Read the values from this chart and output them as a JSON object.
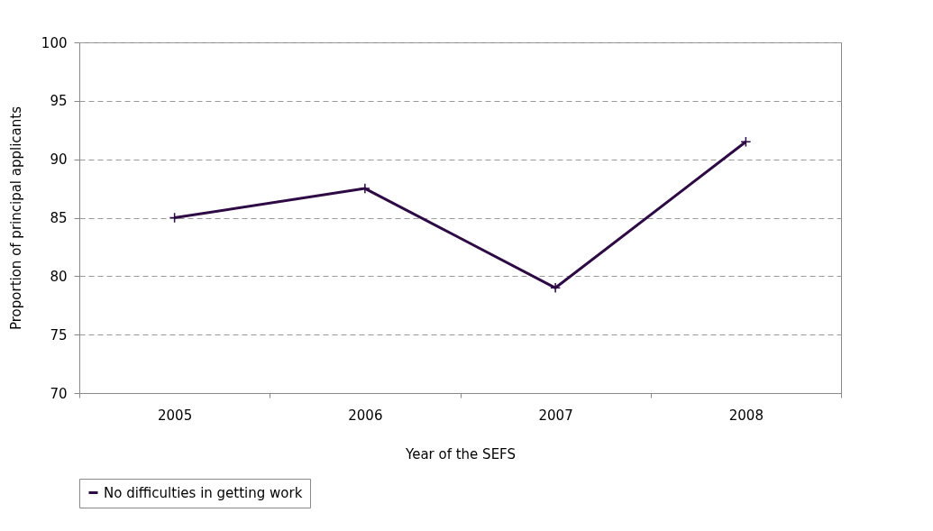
{
  "chart_data": {
    "type": "line",
    "xlabel": "Year of the SEFS",
    "ylabel": "Proportion  of  principal  applicants",
    "categories": [
      "2005",
      "2006",
      "2007",
      "2008"
    ],
    "series": [
      {
        "name": "No difficulties in getting work",
        "color": "#2e0a45",
        "values": [
          85,
          87.5,
          79,
          91.5
        ]
      }
    ],
    "ylim": [
      70,
      100
    ],
    "yticks": [
      70,
      75,
      80,
      85,
      90,
      95,
      100
    ],
    "grid": "y",
    "legend": "bottom",
    "marker": "cross",
    "line_style": "solid"
  }
}
